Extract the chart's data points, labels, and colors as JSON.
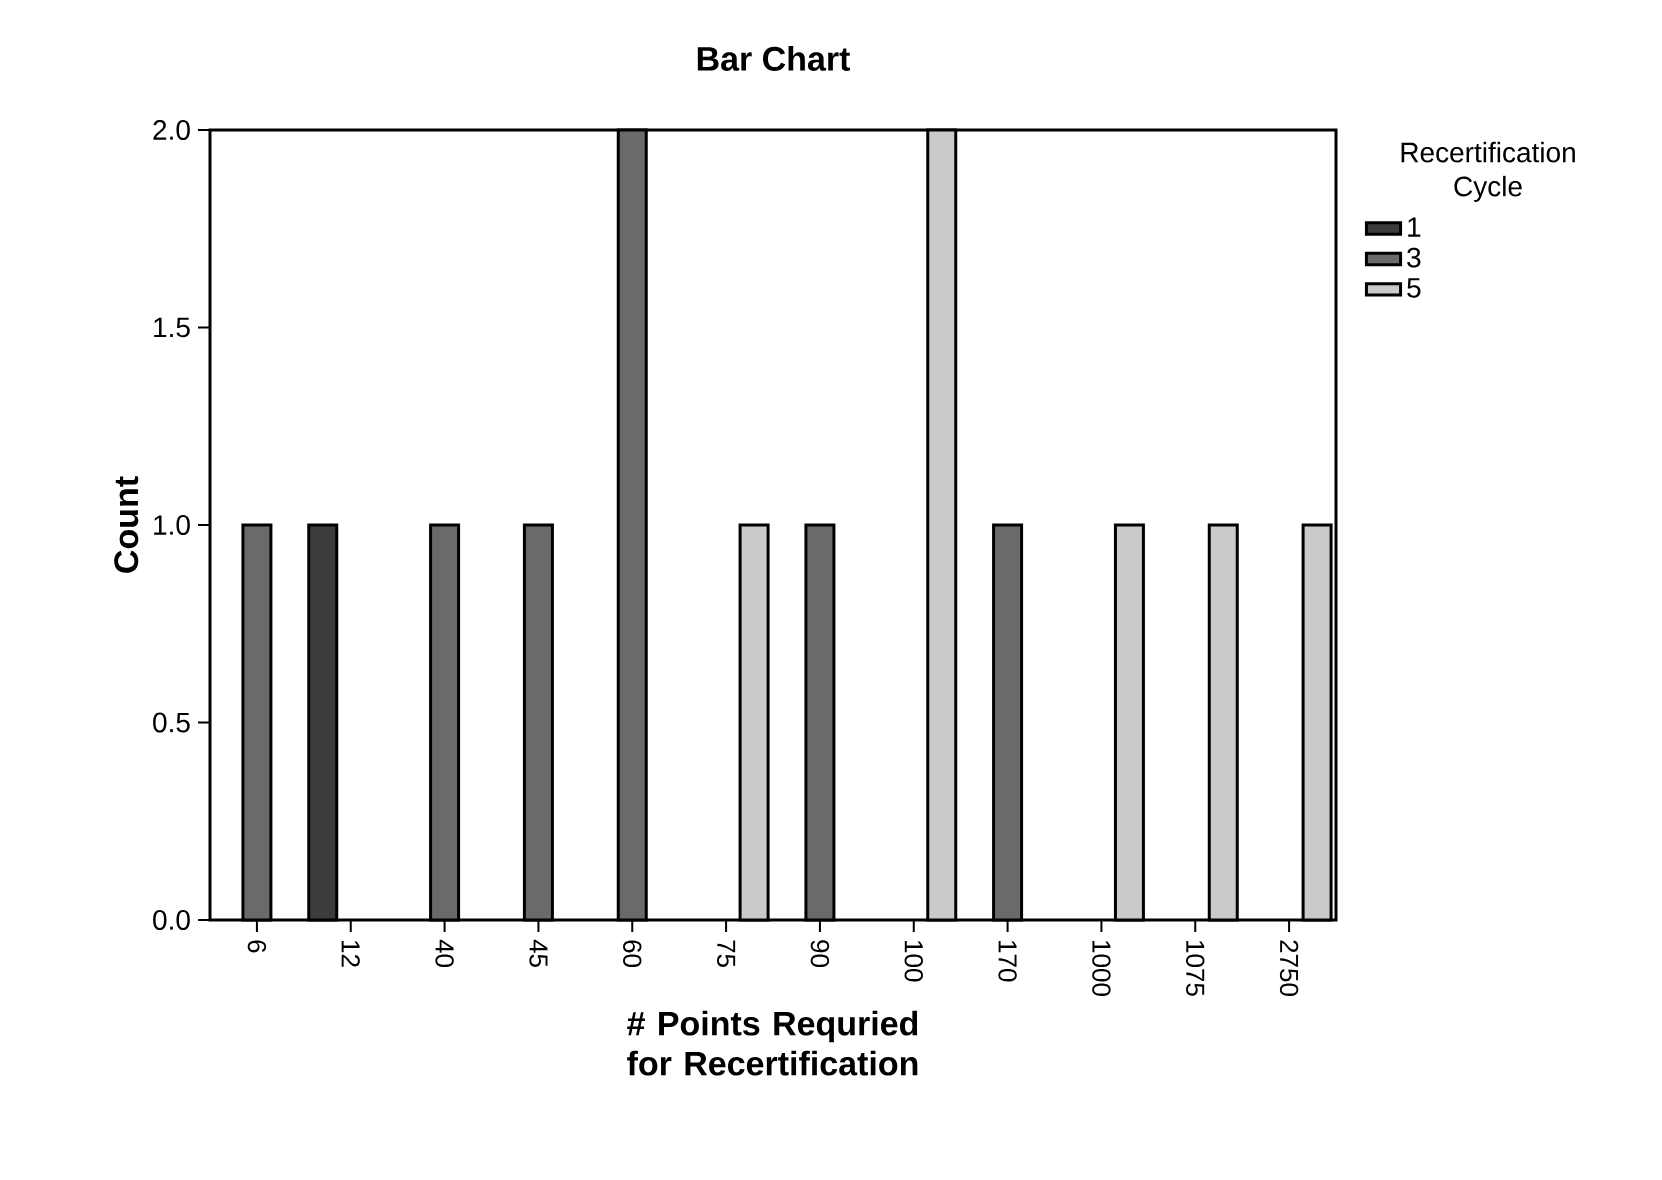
{
  "chart_data": {
    "type": "bar",
    "title": "Bar Chart",
    "xlabel": "# Points Requried for Recertification",
    "ylabel": "Count",
    "legend_title": "Recertification Cycle",
    "legend": "top right",
    "categories": [
      "6",
      "12",
      "40",
      "45",
      "60",
      "75",
      "90",
      "100",
      "170",
      "1000",
      "1075",
      "2750"
    ],
    "series": [
      {
        "name": "1",
        "color": "#3c3c3c",
        "values": [
          null,
          1,
          null,
          null,
          null,
          null,
          null,
          null,
          null,
          null,
          null,
          null
        ]
      },
      {
        "name": "3",
        "color": "#6a6a6a",
        "values": [
          1,
          null,
          1,
          1,
          2,
          null,
          1,
          null,
          1,
          null,
          null,
          null
        ]
      },
      {
        "name": "5",
        "color": "#cacaca",
        "values": [
          null,
          null,
          null,
          null,
          null,
          1,
          null,
          2,
          null,
          1,
          1,
          1
        ]
      }
    ],
    "ylim": [
      0,
      2.0
    ],
    "yticks": [
      {
        "value": 0,
        "label": "0.0"
      },
      {
        "value": 0.5,
        "label": "0.5"
      },
      {
        "value": 1,
        "label": "1.0"
      },
      {
        "value": 1.5,
        "label": "1.5"
      },
      {
        "value": 2,
        "label": "2.0"
      }
    ]
  }
}
